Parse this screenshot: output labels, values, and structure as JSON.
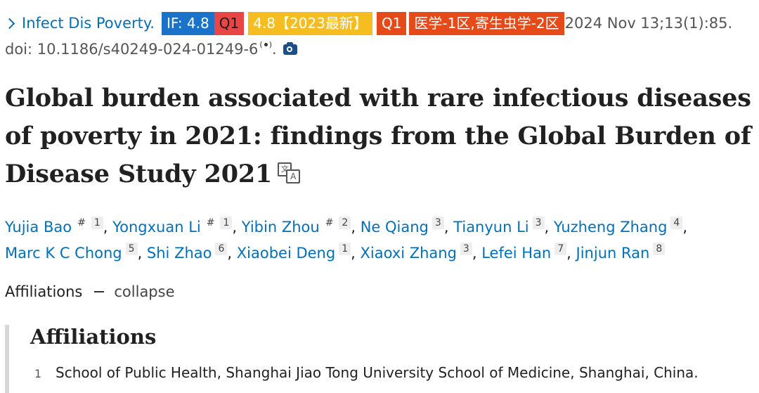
{
  "citation": {
    "journal": "Infect Dis Poverty.",
    "impact_factor": "IF: 4.8",
    "quartile": "Q1",
    "cas_score": "4.8【2023最新】",
    "cas_quartile": "Q1",
    "cas_division": "医学-1区,寄生虫学-2区",
    "pub_date": "2024 Nov 13;13(1):85.",
    "doi": "doi: 10.1186/s40249-024-01249-6",
    "doi_suffix": "."
  },
  "title": "Global burden associated with rare infectious diseases of poverty in 2021: findings from the Global Burden of Disease Study 2021",
  "icons": {
    "chevron": "chevron-right-icon",
    "radio": "radio-wave-icon",
    "camera": "camera-icon",
    "translate": "translate-icon"
  },
  "authors": [
    {
      "name": "Yujia Bao",
      "hash": "#",
      "aff": "1"
    },
    {
      "name": "Yongxuan Li",
      "hash": "#",
      "aff": "1"
    },
    {
      "name": "Yibin Zhou",
      "hash": "#",
      "aff": "2"
    },
    {
      "name": "Ne Qiang",
      "hash": "",
      "aff": "3"
    },
    {
      "name": "Tianyun Li",
      "hash": "",
      "aff": "3"
    },
    {
      "name": "Yuzheng Zhang",
      "hash": "",
      "aff": "4"
    },
    {
      "name": "Marc K C Chong",
      "hash": "",
      "aff": "5"
    },
    {
      "name": "Shi Zhao",
      "hash": "",
      "aff": "6"
    },
    {
      "name": "Xiaobei Deng",
      "hash": "",
      "aff": "1"
    },
    {
      "name": "Xiaoxi Zhang",
      "hash": "",
      "aff": "3"
    },
    {
      "name": "Lefei Han",
      "hash": "",
      "aff": "7"
    },
    {
      "name": "Jinjun Ran",
      "hash": "",
      "aff": "8"
    }
  ],
  "affiliations_toggle": {
    "label": "Affiliations",
    "action": "collapse"
  },
  "affiliations": {
    "heading": "Affiliations",
    "items": [
      {
        "num": "1",
        "text": "School of Public Health, Shanghai Jiao Tong University School of Medicine, Shanghai, China."
      }
    ]
  },
  "colors": {
    "link": "#0071bc",
    "if_badge": "#1a73c8",
    "q1_badge": "#e84545",
    "cas_badge": "#f5bd20",
    "division_badge": "#e64a19"
  }
}
